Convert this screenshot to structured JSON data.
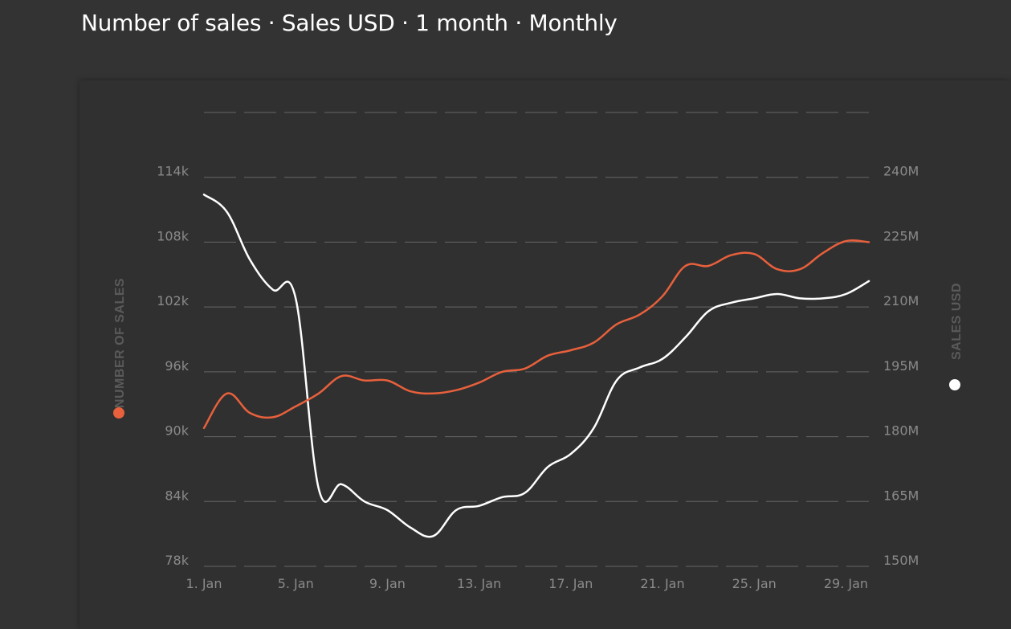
{
  "header": {
    "title": "Number of sales · Sales USD · 1 month · Monthly"
  },
  "colors": {
    "background": "#333333",
    "grid": "#666666",
    "number_of_sales": "#e8603c",
    "sales_usd": "#ffffff"
  },
  "chart_data": {
    "type": "line",
    "title": "Number of sales · Sales USD · 1 month · Monthly",
    "x": [
      1,
      2,
      3,
      4,
      5,
      6,
      7,
      8,
      9,
      10,
      11,
      12,
      13,
      14,
      15,
      16,
      17,
      18,
      19,
      20,
      21,
      22,
      23,
      24,
      25,
      26,
      27,
      28,
      29,
      30
    ],
    "x_tick_labels": [
      "1. Jan",
      "5. Jan",
      "9. Jan",
      "13. Jan",
      "17. Jan",
      "21. Jan",
      "25. Jan",
      "29. Jan"
    ],
    "x_tick_values": [
      1,
      5,
      9,
      13,
      17,
      21,
      25,
      29
    ],
    "y_left": {
      "label": "NUMBER OF SALES",
      "ticks": [
        "78k",
        "84k",
        "90k",
        "96k",
        "102k",
        "108k",
        "114k"
      ],
      "tick_values": [
        78000,
        84000,
        90000,
        96000,
        102000,
        108000,
        114000
      ],
      "range": [
        78000,
        120000
      ]
    },
    "y_right": {
      "label": "SALES USD",
      "ticks": [
        "150M",
        "165M",
        "180M",
        "195M",
        "210M",
        "225M",
        "240M"
      ],
      "tick_values": [
        150,
        165,
        180,
        195,
        210,
        225,
        240
      ],
      "range": [
        150,
        255
      ]
    },
    "grid": true,
    "series": [
      {
        "name": "NUMBER OF SALES",
        "axis": "left",
        "values": [
          90800,
          94000,
          92200,
          91800,
          92800,
          94000,
          95600,
          95200,
          95200,
          94200,
          94000,
          94300,
          95000,
          96000,
          96300,
          97500,
          98000,
          98700,
          100400,
          101300,
          103000,
          105800,
          105800,
          106800,
          106900,
          105500,
          105500,
          107000,
          108100,
          108000
        ]
      },
      {
        "name": "SALES USD",
        "axis": "right",
        "values": [
          236,
          232,
          221,
          214,
          212,
          168,
          169,
          165,
          163,
          159,
          157,
          163,
          164,
          166,
          167,
          173,
          176,
          182,
          193,
          196,
          198,
          203,
          209,
          211,
          212,
          213,
          212,
          212,
          213,
          216
        ]
      }
    ]
  }
}
